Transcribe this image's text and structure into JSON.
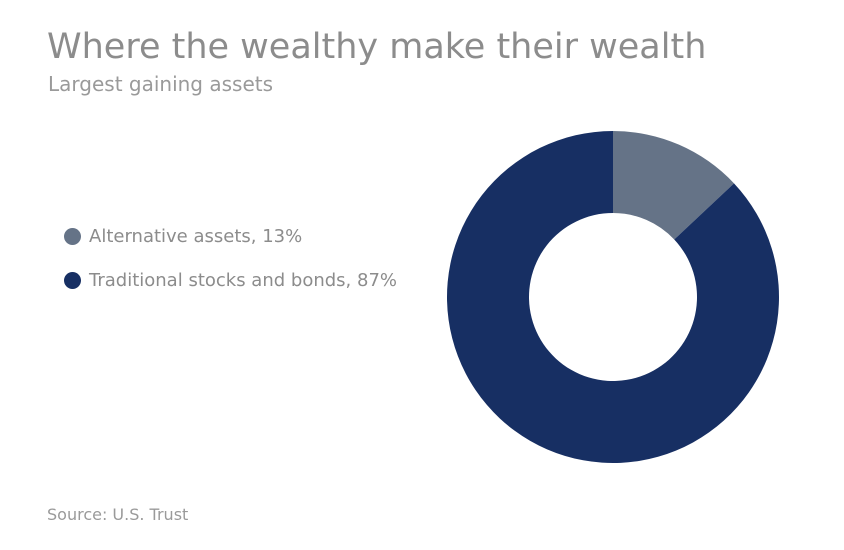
{
  "chart_data": {
    "type": "pie",
    "title": "Where the wealthy make their wealth",
    "subtitle": "Largest gaining assets",
    "categories": [
      "Alternative assets",
      "Traditional stocks and bonds"
    ],
    "values": [
      13,
      87
    ],
    "legend": {
      "placement": "left",
      "entries": [
        "Alternative assets, 13%",
        "Traditional stocks and bonds, 87%"
      ]
    },
    "colors": [
      "#657387",
      "#172f63"
    ],
    "source": "Source: U.S. Trust"
  }
}
